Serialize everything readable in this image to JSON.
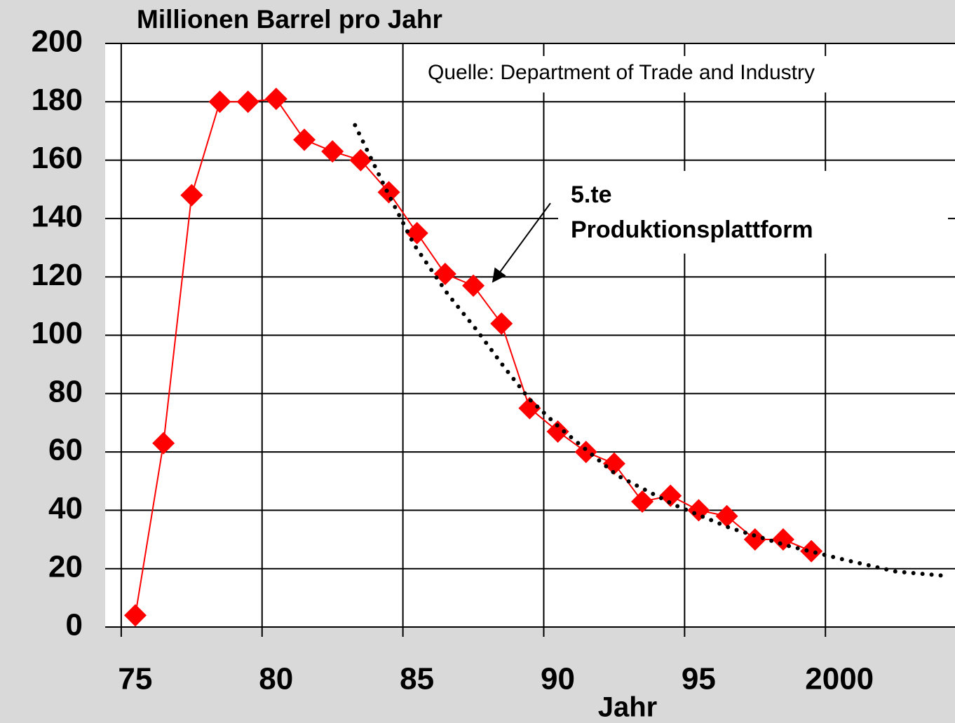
{
  "chart_data": {
    "type": "line",
    "title": "Millionen Barrel pro Jahr",
    "xlabel": "Jahr",
    "annotations": [
      "Quelle: Department of Trade and Industry",
      "5.te",
      "Produktionsplattform"
    ],
    "x": [
      75.5,
      76.5,
      77.5,
      78.5,
      79.5,
      80.5,
      81.5,
      82.5,
      83.5,
      84.5,
      85.5,
      86.5,
      87.5,
      88.5,
      89.5,
      90.5,
      91.5,
      92.5,
      93.5,
      94.5,
      95.5,
      96.5,
      97.5,
      98.5,
      99.5
    ],
    "series": [
      {
        "color": "#ff0000",
        "marker": "diamond",
        "values": [
          4,
          63,
          148,
          180,
          180,
          181,
          167,
          163,
          160,
          149,
          135,
          121,
          117,
          104,
          75,
          67,
          60,
          56,
          43,
          45,
          40,
          38,
          30,
          30,
          26
        ]
      },
      {
        "color": "#000000",
        "style": "dotted",
        "x": [
          83.3,
          84.4,
          85.4,
          86.6,
          87.6,
          88.6,
          89.5,
          90.6,
          92.6,
          94.6,
          96.6,
          98.6,
          100.7,
          102.5,
          104.3
        ],
        "values": [
          172,
          150,
          131,
          114,
          102,
          89,
          78,
          68,
          52,
          42,
          34,
          28,
          23,
          19,
          17.5
        ]
      }
    ],
    "xlim": [
      74.43,
      104.6
    ],
    "ylim": [
      0,
      200
    ],
    "xticks": [
      75,
      80,
      85,
      90,
      95,
      {
        "value": 100,
        "label": "2000"
      }
    ],
    "yticks": [
      0,
      20,
      40,
      60,
      80,
      100,
      120,
      140,
      160,
      180,
      200
    ],
    "grid": true
  }
}
